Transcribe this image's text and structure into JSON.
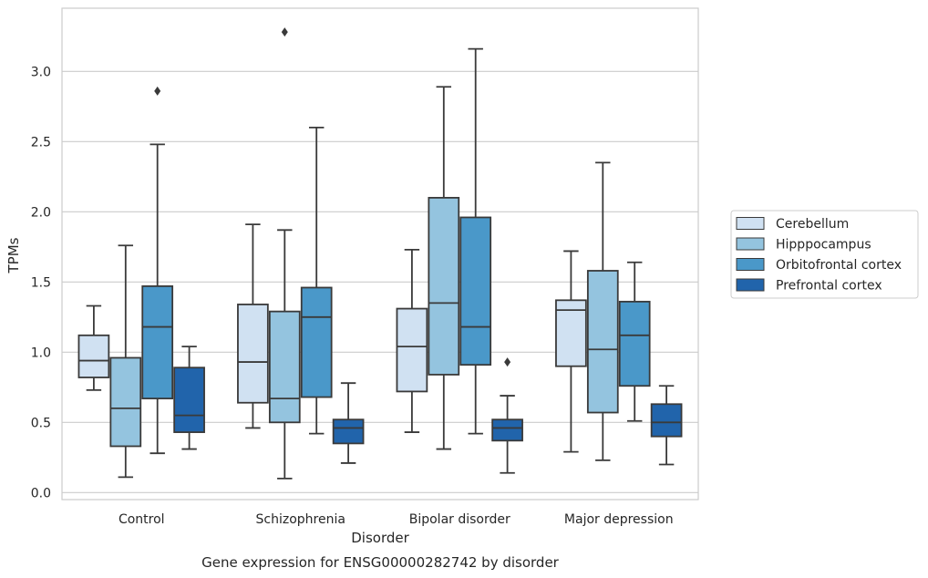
{
  "chart_data": {
    "type": "box",
    "xlabel": "Disorder",
    "ylabel": "TPMs",
    "caption": "Gene expression for ENSG00000282742 by disorder",
    "ylim": [
      -0.05,
      3.45
    ],
    "yticks": [
      "0.0",
      "0.5",
      "1.0",
      "1.5",
      "2.0",
      "2.5",
      "3.0"
    ],
    "yticks_values": [
      0.0,
      0.5,
      1.0,
      1.5,
      2.0,
      2.5,
      3.0
    ],
    "grid": true,
    "legend_position": "right",
    "categories": [
      "Control",
      "Schizophrenia",
      "Bipolar disorder",
      "Major depression"
    ],
    "series": [
      {
        "name": "Cerebellum",
        "color": "#d0e1f2",
        "boxes": [
          {
            "whislo": 0.73,
            "q1": 0.82,
            "med": 0.94,
            "q3": 1.12,
            "whishi": 1.33,
            "fliers": []
          },
          {
            "whislo": 0.46,
            "q1": 0.64,
            "med": 0.93,
            "q3": 1.34,
            "whishi": 1.91,
            "fliers": []
          },
          {
            "whislo": 0.43,
            "q1": 0.72,
            "med": 1.04,
            "q3": 1.31,
            "whishi": 1.73,
            "fliers": []
          },
          {
            "whislo": 0.29,
            "q1": 0.9,
            "med": 1.3,
            "q3": 1.37,
            "whishi": 1.72,
            "fliers": []
          }
        ]
      },
      {
        "name": "Hipppocampus",
        "color": "#94c4df",
        "boxes": [
          {
            "whislo": 0.11,
            "q1": 0.33,
            "med": 0.6,
            "q3": 0.96,
            "whishi": 1.76,
            "fliers": []
          },
          {
            "whislo": 0.1,
            "q1": 0.5,
            "med": 0.67,
            "q3": 1.29,
            "whishi": 1.87,
            "fliers": [
              3.28
            ]
          },
          {
            "whislo": 0.31,
            "q1": 0.84,
            "med": 1.35,
            "q3": 2.1,
            "whishi": 2.89,
            "fliers": []
          },
          {
            "whislo": 0.23,
            "q1": 0.57,
            "med": 1.02,
            "q3": 1.58,
            "whishi": 2.35,
            "fliers": []
          }
        ]
      },
      {
        "name": "Orbitofrontal cortex",
        "color": "#4a98c9",
        "boxes": [
          {
            "whislo": 0.28,
            "q1": 0.67,
            "med": 1.18,
            "q3": 1.47,
            "whishi": 2.48,
            "fliers": [
              2.86
            ]
          },
          {
            "whislo": 0.42,
            "q1": 0.68,
            "med": 1.25,
            "q3": 1.46,
            "whishi": 2.6,
            "fliers": []
          },
          {
            "whislo": 0.42,
            "q1": 0.91,
            "med": 1.18,
            "q3": 1.96,
            "whishi": 3.16,
            "fliers": []
          },
          {
            "whislo": 0.51,
            "q1": 0.76,
            "med": 1.12,
            "q3": 1.36,
            "whishi": 1.64,
            "fliers": []
          }
        ]
      },
      {
        "name": "Prefrontal cortex",
        "color": "#2164ab",
        "boxes": [
          {
            "whislo": 0.31,
            "q1": 0.43,
            "med": 0.55,
            "q3": 0.89,
            "whishi": 1.04,
            "fliers": []
          },
          {
            "whislo": 0.21,
            "q1": 0.35,
            "med": 0.46,
            "q3": 0.52,
            "whishi": 0.78,
            "fliers": []
          },
          {
            "whislo": 0.14,
            "q1": 0.37,
            "med": 0.46,
            "q3": 0.52,
            "whishi": 0.69,
            "fliers": [
              0.93
            ]
          },
          {
            "whislo": 0.2,
            "q1": 0.4,
            "med": 0.5,
            "q3": 0.63,
            "whishi": 0.76,
            "fliers": []
          }
        ]
      }
    ]
  }
}
